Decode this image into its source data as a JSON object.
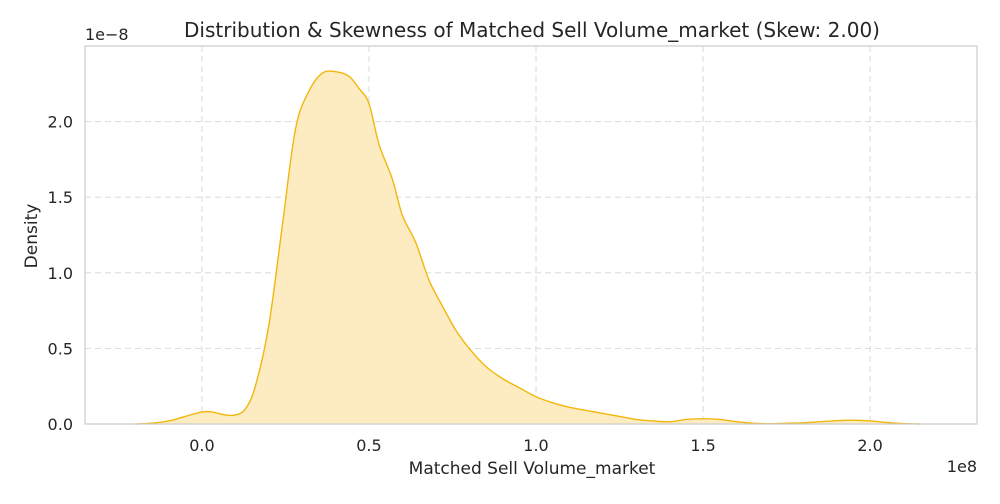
{
  "chart_data": {
    "type": "area",
    "title": "Distribution & Skewness of Matched Sell Volume_market (Skew: 2.00)",
    "xlabel": "Matched Sell Volume_market",
    "ylabel": "Density",
    "x_offset_label": "1e8",
    "y_offset_label": "1e−8",
    "xlim": [
      -0.35,
      2.32
    ],
    "ylim": [
      0,
      2.5
    ],
    "x_ticks": [
      0.0,
      0.5,
      1.0,
      1.5,
      2.0
    ],
    "x_tick_labels": [
      "0.0",
      "0.5",
      "1.0",
      "1.5",
      "2.0"
    ],
    "y_ticks": [
      0.0,
      0.5,
      1.0,
      1.5,
      2.0
    ],
    "y_tick_labels": [
      "0.0",
      "0.5",
      "1.0",
      "1.5",
      "2.0"
    ],
    "grid": true,
    "legend": "none",
    "colors": {
      "line": "#f2b70d",
      "fill": "#fdebbf",
      "grid": "#dddddd",
      "spine": "#cccccc"
    },
    "series": [
      {
        "x": [
          -0.2,
          -0.15,
          -0.1,
          -0.05,
          0.0,
          0.03,
          0.07,
          0.1,
          0.13,
          0.16,
          0.2,
          0.24,
          0.28,
          0.32,
          0.36,
          0.4,
          0.44,
          0.47,
          0.5,
          0.53,
          0.57,
          0.6,
          0.64,
          0.68,
          0.72,
          0.76,
          0.8,
          0.85,
          0.9,
          0.95,
          1.0,
          1.05,
          1.1,
          1.15,
          1.2,
          1.25,
          1.3,
          1.35,
          1.4,
          1.45,
          1.5,
          1.55,
          1.6,
          1.65,
          1.7,
          1.75,
          1.8,
          1.85,
          1.9,
          1.95,
          2.0,
          2.05,
          2.1,
          2.15
        ],
        "values": [
          0.0,
          0.005,
          0.02,
          0.05,
          0.08,
          0.08,
          0.06,
          0.06,
          0.1,
          0.25,
          0.65,
          1.3,
          1.95,
          2.2,
          2.32,
          2.33,
          2.3,
          2.22,
          2.12,
          1.85,
          1.62,
          1.38,
          1.2,
          0.95,
          0.78,
          0.62,
          0.5,
          0.38,
          0.3,
          0.24,
          0.18,
          0.14,
          0.11,
          0.09,
          0.07,
          0.05,
          0.03,
          0.02,
          0.015,
          0.03,
          0.035,
          0.03,
          0.015,
          0.005,
          0.002,
          0.005,
          0.008,
          0.015,
          0.022,
          0.025,
          0.02,
          0.01,
          0.003,
          0.0
        ]
      }
    ]
  }
}
